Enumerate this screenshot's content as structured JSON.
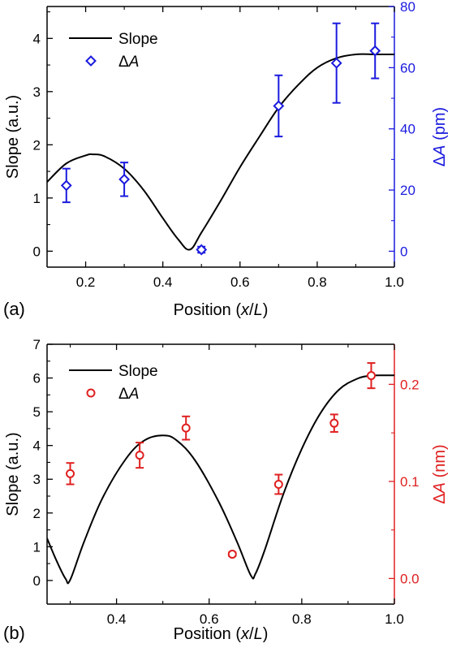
{
  "chart_data": [
    {
      "panel_label": "(a)",
      "type": "line+scatter",
      "xlabel_parts": [
        "Position (",
        "x",
        "/",
        "L",
        ")"
      ],
      "ylabel": "Slope (a.u.)",
      "y2label_parts": [
        "Δ",
        "A",
        " (pm)"
      ],
      "xlim": [
        0.1,
        1.0
      ],
      "ylim": [
        -0.3,
        4.6
      ],
      "y2lim": [
        -5.2,
        80
      ],
      "xticks": [
        0.2,
        0.4,
        0.6,
        0.8,
        1.0
      ],
      "xtick_labels": [
        "0.2",
        "0.4",
        "0.6",
        "0.8",
        "1.0"
      ],
      "yticks": [
        0,
        1,
        2,
        3,
        4
      ],
      "ytick_labels": [
        "0",
        "1",
        "2",
        "3",
        "4"
      ],
      "y2ticks": [
        0,
        20,
        40,
        60,
        80
      ],
      "y2tick_labels": [
        "0",
        "20",
        "40",
        "60",
        "80"
      ],
      "right_axis_color": "#1a1adf",
      "legend_position": "top-left",
      "series": [
        {
          "name": "Slope",
          "kind": "line",
          "axis": "left",
          "color": "#000000",
          "x": [
            0.1,
            0.15,
            0.2,
            0.22,
            0.25,
            0.3,
            0.35,
            0.4,
            0.44,
            0.47,
            0.5,
            0.55,
            0.6,
            0.65,
            0.7,
            0.75,
            0.8,
            0.85,
            0.9,
            0.95,
            1.0
          ],
          "y": [
            1.3,
            1.65,
            1.8,
            1.82,
            1.78,
            1.55,
            1.15,
            0.62,
            0.22,
            0.03,
            0.35,
            0.95,
            1.58,
            2.15,
            2.7,
            3.12,
            3.45,
            3.63,
            3.7,
            3.7,
            3.7
          ]
        },
        {
          "name": "ΔA",
          "name_parts": [
            "Δ",
            "A"
          ],
          "kind": "scatter",
          "marker": "diamond",
          "axis": "right",
          "color": "#1a1adf",
          "x": [
            0.15,
            0.3,
            0.5,
            0.7,
            0.85,
            0.95
          ],
          "y": [
            21.5,
            23.5,
            0.5,
            47.5,
            61.5,
            65.5
          ],
          "err": [
            5.5,
            5.5,
            1.0,
            10.0,
            13.0,
            9.0
          ]
        }
      ]
    },
    {
      "panel_label": "(b)",
      "type": "line+scatter",
      "xlabel_parts": [
        "Position (",
        "x",
        "/",
        "L",
        ")"
      ],
      "ylabel": "Slope (a.u.)",
      "y2label_parts": [
        "Δ",
        "A",
        " (nm)"
      ],
      "xlim": [
        0.25,
        1.0
      ],
      "ylim": [
        -0.7,
        7.0
      ],
      "y2lim": [
        -0.0264,
        0.2413
      ],
      "xticks": [
        0.4,
        0.6,
        0.8,
        1.0
      ],
      "xtick_labels": [
        "0.4",
        "0.6",
        "0.8",
        "1.0"
      ],
      "yticks": [
        0,
        1,
        2,
        3,
        4,
        5,
        6,
        7
      ],
      "ytick_labels": [
        "0",
        "1",
        "2",
        "3",
        "4",
        "5",
        "6",
        "7"
      ],
      "y2ticks": [
        0.0,
        0.1,
        0.2
      ],
      "y2tick_labels": [
        "0.0",
        "0.1",
        "0.2"
      ],
      "right_axis_color": "#e02020",
      "legend_position": "top-left",
      "series": [
        {
          "name": "Slope",
          "kind": "line",
          "axis": "left",
          "color": "#000000",
          "x": [
            0.25,
            0.27,
            0.29,
            0.3,
            0.33,
            0.37,
            0.42,
            0.46,
            0.5,
            0.53,
            0.57,
            0.62,
            0.66,
            0.69,
            0.7,
            0.72,
            0.76,
            0.8,
            0.84,
            0.88,
            0.92,
            0.95,
            0.98,
            1.0
          ],
          "y": [
            1.25,
            0.6,
            0.05,
            0.02,
            1.15,
            2.45,
            3.6,
            4.15,
            4.3,
            4.15,
            3.55,
            2.35,
            1.15,
            0.15,
            0.2,
            0.9,
            2.55,
            3.9,
            4.95,
            5.65,
            5.98,
            6.07,
            6.08,
            6.08
          ]
        },
        {
          "name": "ΔA",
          "name_parts": [
            "Δ",
            "A"
          ],
          "kind": "scatter",
          "marker": "circle",
          "axis": "right",
          "color": "#e02020",
          "x": [
            0.3,
            0.45,
            0.55,
            0.65,
            0.75,
            0.87,
            0.95
          ],
          "y": [
            0.108,
            0.127,
            0.155,
            0.025,
            0.097,
            0.16,
            0.209
          ],
          "err": [
            0.011,
            0.013,
            0.012,
            0.002,
            0.01,
            0.009,
            0.013
          ]
        }
      ]
    }
  ]
}
